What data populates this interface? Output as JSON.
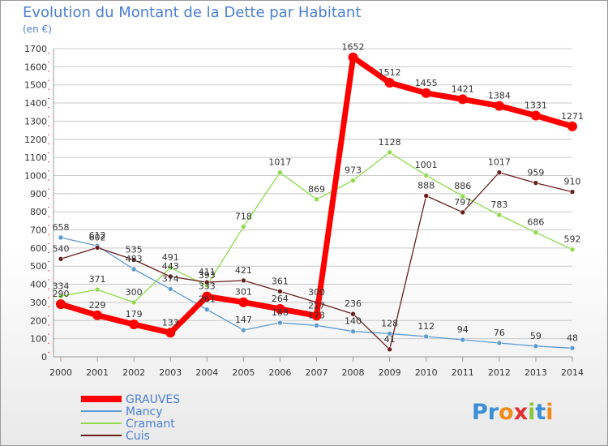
{
  "title": "Evolution du Montant de la Dette par Habitant",
  "subtitle": "(en €)",
  "logo": "Proxiti",
  "colors": {
    "GRAUVES": "#ff0000",
    "Mancy": "#5b9bd5",
    "Cramant": "#8edc4c",
    "Cuis": "#6b1f1f",
    "title": "#4a7fd4",
    "grid": "#c8c8c8"
  },
  "chart_data": {
    "type": "line",
    "title": "Evolution du Montant de la Dette par Habitant",
    "subtitle": "(en €)",
    "x": [
      "2000",
      "2001",
      "2002",
      "2003",
      "2004",
      "2005",
      "2006",
      "2007",
      "2008",
      "2009",
      "2010",
      "2011",
      "2012",
      "2013",
      "2014"
    ],
    "ylim": [
      0,
      1700
    ],
    "yticks": [
      0,
      100,
      200,
      300,
      400,
      500,
      600,
      700,
      800,
      900,
      1000,
      1100,
      1200,
      1300,
      1400,
      1500,
      1600,
      1700
    ],
    "grid": true,
    "legend_position": "bottom-left",
    "series": [
      {
        "name": "GRAUVES",
        "values": [
          290,
          229,
          179,
          133,
          333,
          301,
          264,
          227,
          1652,
          1512,
          1455,
          1421,
          1384,
          1331,
          1271
        ]
      },
      {
        "name": "Mancy",
        "values": [
          658,
          612,
          483,
          374,
          261,
          147,
          188,
          173,
          140,
          128,
          112,
          94,
          76,
          59,
          48
        ]
      },
      {
        "name": "Cramant",
        "values": [
          334,
          371,
          300,
          491,
          393,
          718,
          1017,
          869,
          973,
          1128,
          1001,
          886,
          783,
          686,
          592
        ]
      },
      {
        "name": "Cuis",
        "values": [
          540,
          602,
          535,
          443,
          411,
          421,
          361,
          300,
          236,
          41,
          888,
          797,
          1017,
          959,
          910
        ]
      }
    ]
  }
}
